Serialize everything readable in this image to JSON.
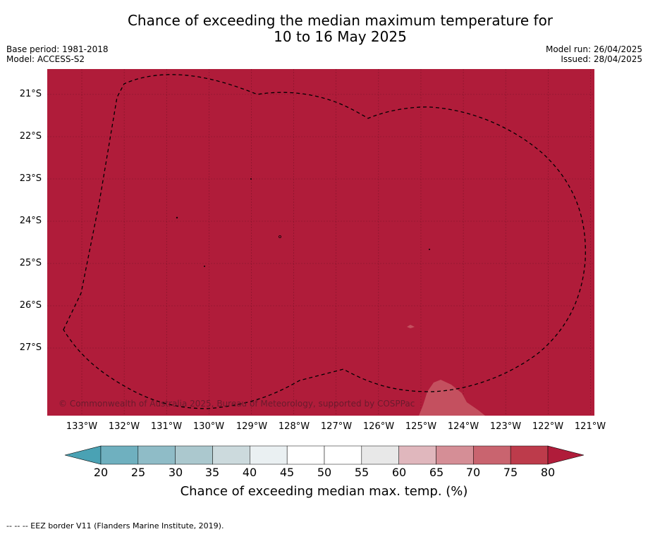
{
  "title_line1": "Chance of exceeding the median maximum temperature for",
  "title_line2": "10 to 16 May 2025",
  "meta_left": [
    "Base period: 1981-2018",
    "Model: ACCESS-S2"
  ],
  "meta_right": [
    "Model run: 26/04/2025",
    "Issued: 28/04/2025"
  ],
  "map": {
    "fill_color": "#b01c3a",
    "light_patch_color": "#c4505f",
    "eez_line_style": "dashed",
    "lat_labels": [
      "21°S",
      "22°S",
      "23°S",
      "24°S",
      "25°S",
      "26°S",
      "27°S"
    ],
    "lon_labels": [
      "133°W",
      "132°W",
      "131°W",
      "130°W",
      "129°W",
      "128°W",
      "127°W",
      "126°W",
      "125°W",
      "124°W",
      "123°W",
      "122°W",
      "121°W"
    ],
    "copyright": "© Commonwealth of Australia 2025, Bureau of Meteorology, supported by COSPPac"
  },
  "colorbar": {
    "label": "Chance of exceeding median max. temp. (%)",
    "ticks": [
      "20",
      "25",
      "30",
      "35",
      "40",
      "45",
      "50",
      "55",
      "60",
      "65",
      "70",
      "75",
      "80"
    ],
    "colors": [
      "#4aa2b4",
      "#6fb0bf",
      "#8fbcc7",
      "#abc8ce",
      "#ccdadd",
      "#eaf0f2",
      "#ffffff",
      "#ffffff",
      "#e8e8e8",
      "#e0b7bd",
      "#d58e96",
      "#c9646f",
      "#bd3b4b",
      "#b01c3a"
    ]
  },
  "footnote": "--  --  -- EEZ border V11 (Flanders Marine Institute, 2019)."
}
